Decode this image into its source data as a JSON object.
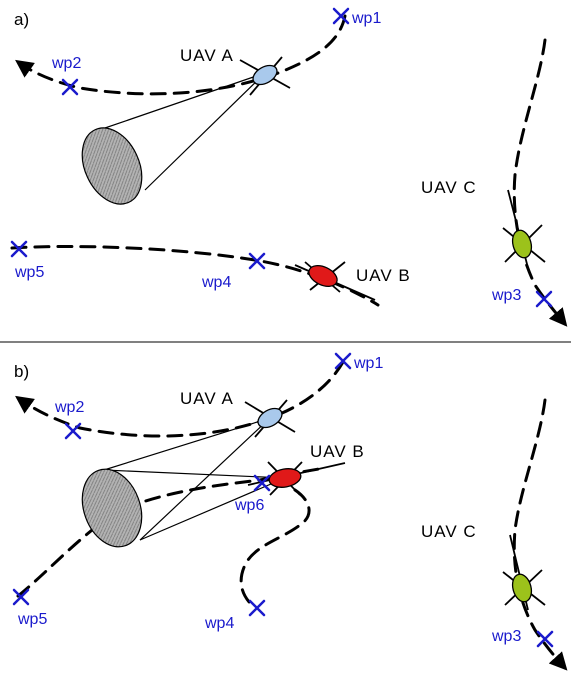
{
  "colors": {
    "waypoint": "#1a1acc",
    "uav_a": "#a9c9ec",
    "uav_b": "#e01919",
    "uav_c": "#9cc21b",
    "sensor_target": "#b3b3b3"
  },
  "panel_a": {
    "label": "a)",
    "uavs": {
      "a": "UAV A",
      "b": "UAV B",
      "c": "UAV C"
    },
    "waypoints": {
      "wp1": "wp1",
      "wp2": "wp2",
      "wp3": "wp3",
      "wp4": "wp4",
      "wp5": "wp5"
    }
  },
  "panel_b": {
    "label": "b)",
    "uavs": {
      "a": "UAV A",
      "b": "UAV B",
      "c": "UAV C"
    },
    "waypoints": {
      "wp1": "wp1",
      "wp2": "wp2",
      "wp3": "wp3",
      "wp4": "wp4",
      "wp5": "wp5",
      "wp6": "wp6"
    }
  }
}
